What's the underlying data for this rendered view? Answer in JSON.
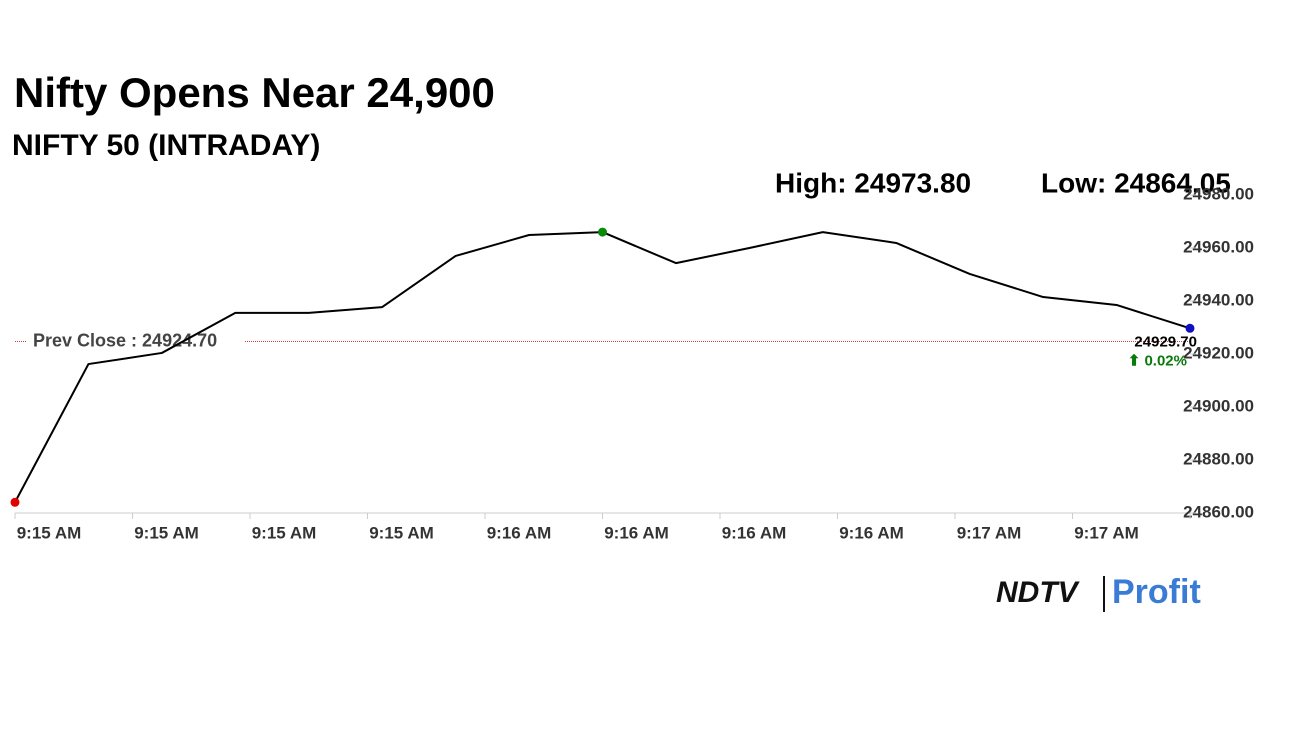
{
  "chart_data": {
    "type": "line",
    "title": "Nifty Opens Near 24,900",
    "subtitle": "NIFTY 50 (INTRADAY)",
    "high_text": "High: 24973.80",
    "low_text": "Low: 24864.05",
    "values": [
      24864.05,
      24916.2,
      24920.4,
      24935.5,
      24935.5,
      24937.7,
      24957,
      24964.9,
      24966,
      24954.3,
      24960,
      24966,
      24961.9,
      24950.2,
      24941.5,
      24938.5,
      24929.7
    ],
    "color": "#000000",
    "start_color": "#e00000",
    "high_color": "#0a8a0a",
    "end_color": "#1010c0",
    "x_labels": [
      "9:15 AM",
      "9:15 AM",
      "9:15 AM",
      "9:15 AM",
      "9:16 AM",
      "9:16 AM",
      "9:16 AM",
      "9:16 AM",
      "9:17 AM",
      "9:17 AM"
    ],
    "ylim": [
      24860,
      24980
    ],
    "yticks": [
      {
        "value": 24860,
        "label": "24860.00"
      },
      {
        "value": 24880,
        "label": "24880.00"
      },
      {
        "value": 24900,
        "label": "24900.00"
      },
      {
        "value": 24920,
        "label": "24920.00"
      },
      {
        "value": 24940,
        "label": "24940.00"
      },
      {
        "value": 24960,
        "label": "24960.00"
      },
      {
        "value": 24980,
        "label": "24980.00"
      }
    ],
    "prev_close": {
      "label": "Prev Close : 24924.70",
      "value": 24924.7,
      "color": "#d04040"
    },
    "last_label": "24929.70",
    "change_label": "⬆ 0.02%",
    "change_color": "#0a7a0a",
    "logo_left": "NDTV",
    "logo_right": "Profit"
  }
}
